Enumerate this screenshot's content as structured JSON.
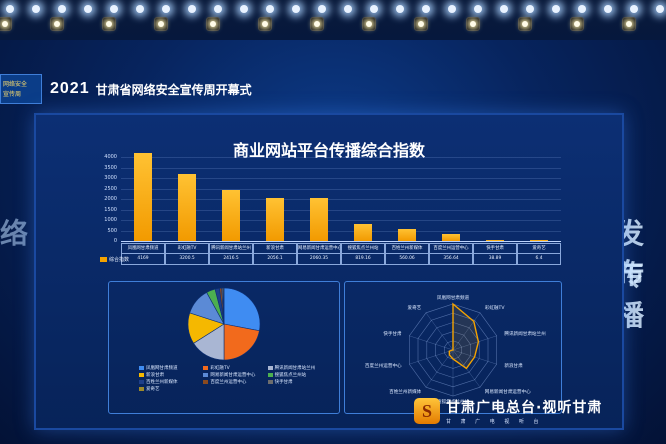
{
  "banner": {
    "logo_text": [
      "网络安全",
      "宣传周"
    ],
    "year": "2021",
    "event": "甘肃省网络安全宣传周开幕式"
  },
  "side_text": {
    "left": "络",
    "right": [
      "发布",
      "传播"
    ]
  },
  "chart": {
    "title": "商业网站平台传播综合指数"
  },
  "chart_data": [
    {
      "type": "bar",
      "title": "商业网站平台传播综合指数",
      "y_ticks": [
        "4000",
        "3500",
        "3000",
        "2500",
        "2000",
        "1500",
        "1000",
        "500",
        "0"
      ],
      "ylim": [
        0,
        4000
      ],
      "categories": [
        "凤凰网甘肃频道",
        "彩虹融TV",
        "腾讯新闻甘肃站兰州",
        "新浪甘肃",
        "网易新闻甘肃运营中心",
        "搜狐焦点兰州站",
        "百姓兰州新媒体",
        "百度兰州运营中心",
        "快手甘肃",
        "爱奇艺"
      ],
      "values": [
        4169,
        3200.5,
        2416.5,
        2056.1,
        2060.35,
        819.16,
        560.06,
        356.64,
        38.89,
        6.4
      ],
      "value_labels": [
        "4169",
        "3200.5",
        "2416.5",
        "2056.1",
        "2060.35",
        "819.16",
        "560.06",
        "356.64",
        "38.89",
        "6.4"
      ],
      "legend": "综合指数",
      "color": "#f5a300"
    },
    {
      "type": "pie",
      "slices": [
        {
          "label": "凤凰网甘肃频道",
          "value": 28,
          "color": "#3f8cf2"
        },
        {
          "label": "彩虹融TV",
          "value": 22,
          "color": "#f26a1c"
        },
        {
          "label": "腾讯新闻甘肃站兰州",
          "value": 16,
          "color": "#a9b6d3"
        },
        {
          "label": "新浪甘肃",
          "value": 14,
          "color": "#f5b800"
        },
        {
          "label": "网易新闻甘肃运营中心",
          "value": 12,
          "color": "#5b8ad6"
        },
        {
          "label": "搜狐焦点兰州站",
          "value": 4,
          "color": "#4caf50"
        },
        {
          "label": "百姓兰州新媒体",
          "value": 2,
          "color": "#1e3f8a"
        },
        {
          "label": "百度兰州运营中心",
          "value": 1,
          "color": "#8a4a20"
        },
        {
          "label": "快手甘肃",
          "value": 0.6,
          "color": "#6d6d6d"
        },
        {
          "label": "爱奇艺",
          "value": 0.4,
          "color": "#9e8a2a"
        }
      ]
    },
    {
      "type": "radar",
      "axes": [
        "凤凰网甘肃频道",
        "彩虹融TV",
        "腾讯新闻甘肃站兰州",
        "新浪甘肃",
        "网易新闻甘肃运营中心",
        "搜狐焦点兰州站",
        "百姓兰州新媒体",
        "百度兰州运营中心",
        "快手甘肃",
        "爱奇艺"
      ],
      "values": [
        4169,
        3200.5,
        2416.5,
        2056.1,
        2060.35,
        819.16,
        560.06,
        356.64,
        38.89,
        6.4
      ],
      "color": "#f5a300"
    }
  ],
  "watermark": {
    "logo": "S",
    "main": "甘肃广电总台·视听甘肃",
    "sub": "甘 肃 广 电 视 听 台"
  }
}
